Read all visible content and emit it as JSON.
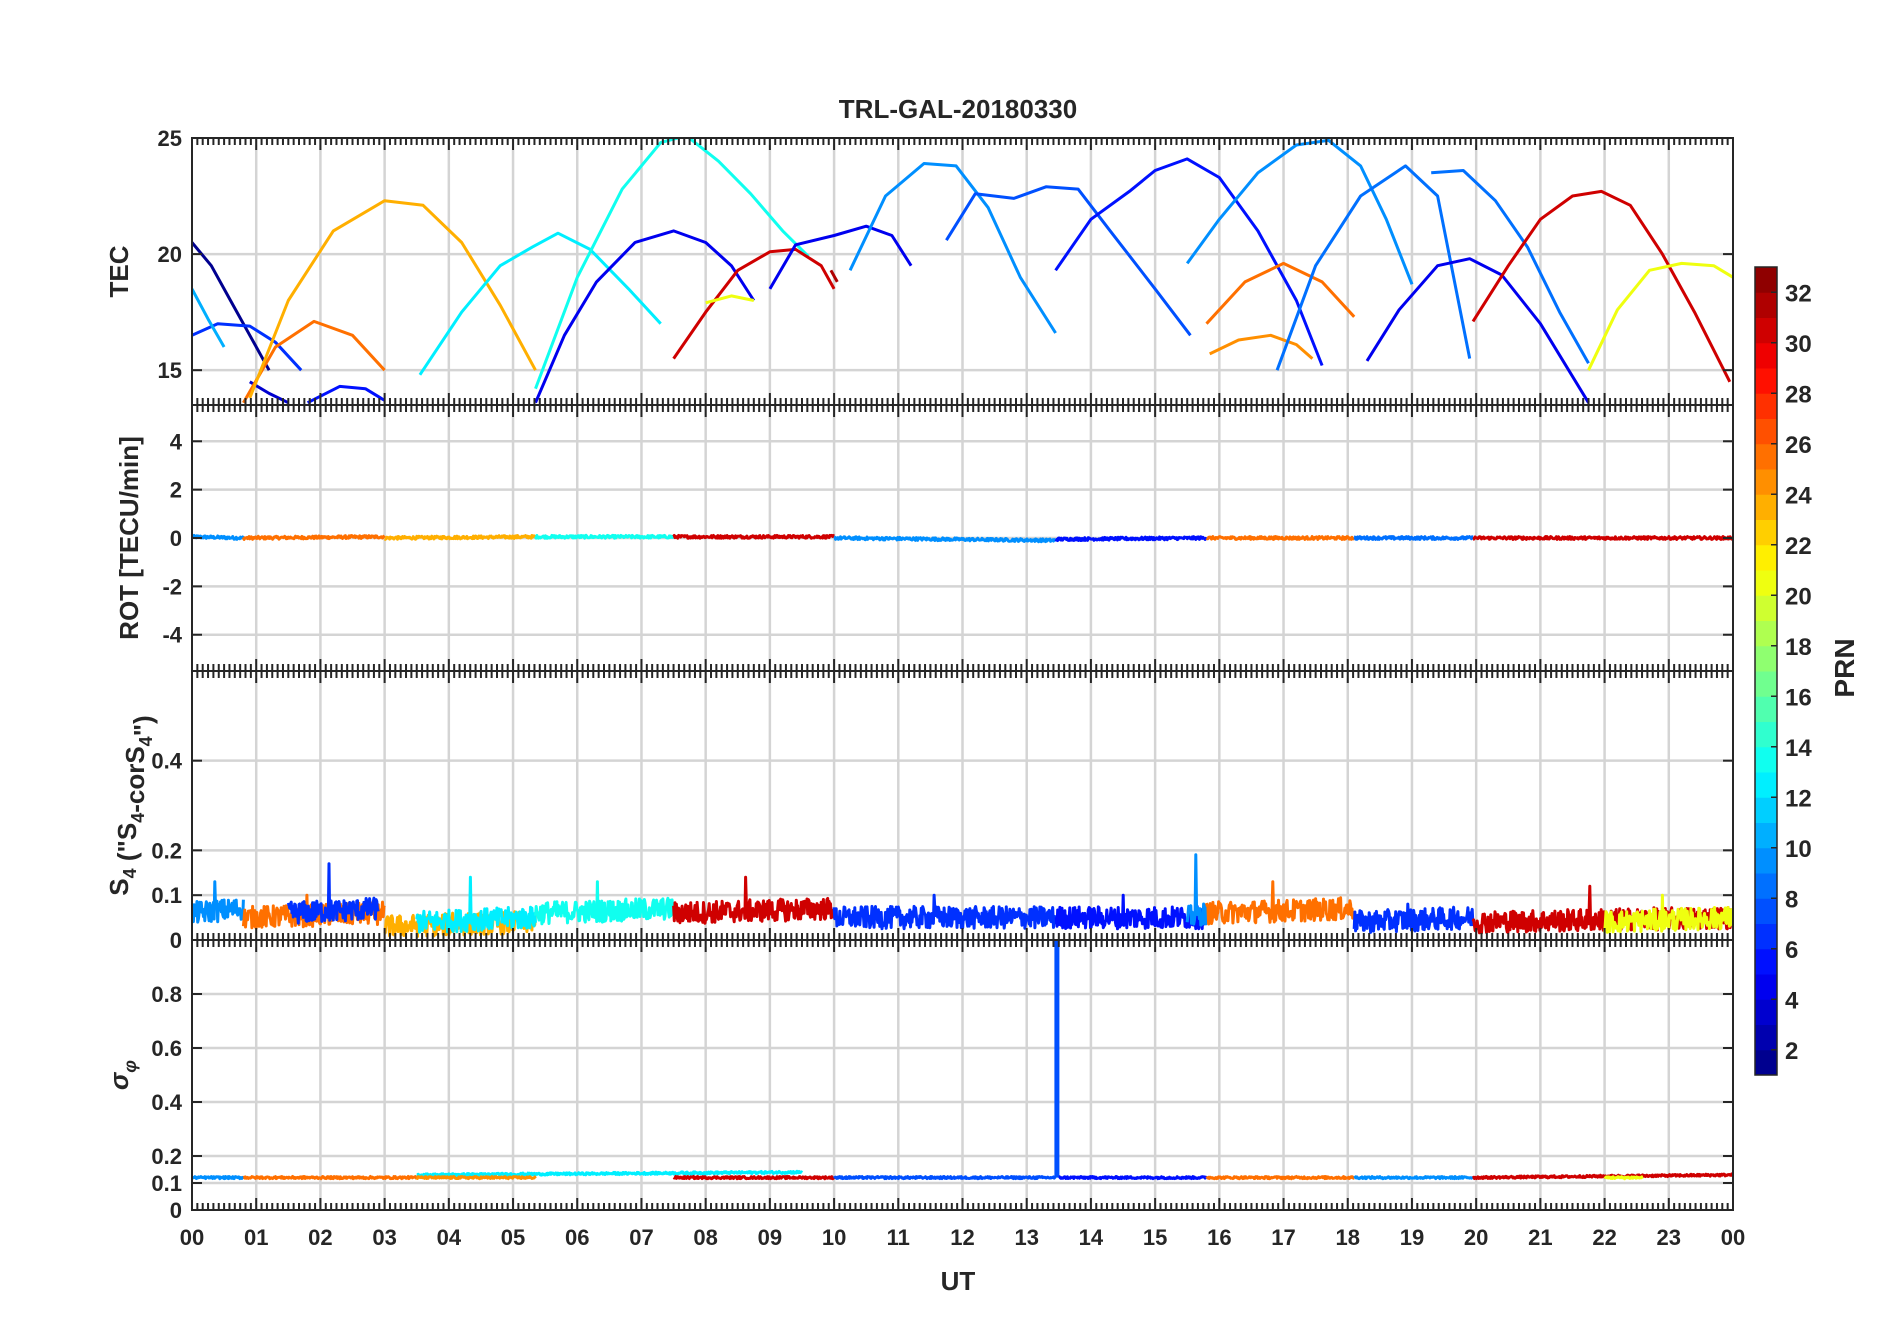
{
  "figure": {
    "title": "TRL-GAL-20180330",
    "xlabel": "UT",
    "x_ticks": [
      "00",
      "01",
      "02",
      "03",
      "04",
      "05",
      "06",
      "07",
      "08",
      "09",
      "10",
      "11",
      "12",
      "13",
      "14",
      "15",
      "16",
      "17",
      "18",
      "19",
      "20",
      "21",
      "22",
      "23",
      "00"
    ],
    "colorbar": {
      "label": "PRN",
      "colormap": "jet",
      "range": [
        1,
        32
      ],
      "ticks": [
        "2",
        "4",
        "6",
        "8",
        "10",
        "12",
        "14",
        "16",
        "18",
        "20",
        "22",
        "24",
        "26",
        "28",
        "30",
        "32"
      ]
    }
  },
  "chart_data": [
    {
      "type": "line",
      "panel": "TEC",
      "ylabel": "TEC",
      "x_unit": "UT hours",
      "xlim": [
        0,
        24
      ],
      "ylim": [
        13.5,
        25
      ],
      "y_ticks": [
        "15",
        "20",
        "25"
      ],
      "grid": true,
      "series": [
        {
          "prn": 1,
          "arc": "TEC",
          "x": [
            0,
            0.3,
            0.6,
            0.9,
            1.2
          ],
          "y": [
            20.5,
            19.5,
            18,
            16.5,
            15
          ]
        },
        {
          "prn": 6,
          "arc": "TEC",
          "x": [
            0,
            0.4,
            0.9,
            1.3,
            1.7
          ],
          "y": [
            16.5,
            17,
            16.9,
            16.2,
            15
          ]
        },
        {
          "prn": 3,
          "arc": "TEC",
          "x": [
            0.9,
            1.2,
            1.5
          ],
          "y": [
            14.5,
            14,
            13.6
          ]
        },
        {
          "prn": 10,
          "arc": "TEC",
          "x": [
            0,
            0.25,
            0.5
          ],
          "y": [
            18.5,
            17.2,
            16
          ]
        },
        {
          "prn": 25,
          "arc": "TEC",
          "x": [
            0.8,
            1.3,
            1.9,
            2.5,
            3.0
          ],
          "y": [
            13.6,
            16,
            17.1,
            16.5,
            15
          ]
        },
        {
          "prn": 23,
          "arc": "TEC",
          "x": [
            0.9,
            1.5,
            2.2,
            3.0,
            3.6,
            4.2,
            4.8,
            5.35
          ],
          "y": [
            13.8,
            18,
            21,
            22.3,
            22.1,
            20.5,
            17.8,
            15
          ]
        },
        {
          "prn": 5,
          "arc": "TEC",
          "x": [
            1.8,
            2.3,
            2.7,
            3.0
          ],
          "y": [
            13.6,
            14.3,
            14.2,
            13.7
          ]
        },
        {
          "prn": 12,
          "arc": "TEC",
          "x": [
            3.55,
            4.2,
            4.8,
            5.3,
            5.7,
            6.2,
            6.8,
            7.3
          ],
          "y": [
            14.8,
            17.5,
            19.5,
            20.3,
            20.9,
            20.2,
            18.5,
            17
          ]
        },
        {
          "prn": 13,
          "arc": "TEC",
          "x": [
            5.35,
            6.0,
            6.7,
            7.3,
            7.7,
            8.2,
            8.7,
            9.2,
            9.6
          ],
          "y": [
            14.2,
            19,
            22.8,
            24.8,
            25.1,
            24,
            22.6,
            21,
            19.9
          ]
        },
        {
          "prn": 4,
          "arc": "TEC",
          "x": [
            5.35,
            5.8,
            6.3,
            6.9,
            7.5,
            8.0,
            8.4,
            8.75
          ],
          "y": [
            13.6,
            16.5,
            18.8,
            20.5,
            21,
            20.5,
            19.5,
            18
          ]
        },
        {
          "prn": 30,
          "arc": "TEC",
          "x": [
            7.5,
            8.0,
            8.5,
            9.0,
            9.4,
            9.8,
            10.0
          ],
          "y": [
            15.5,
            17.5,
            19.3,
            20.1,
            20.2,
            19.5,
            18.5
          ]
        },
        {
          "prn": 31,
          "arc": "TEC",
          "x": [
            9.95,
            10.05
          ],
          "y": [
            19.3,
            18.8
          ]
        },
        {
          "prn": 20,
          "arc": "TEC",
          "x": [
            8.0,
            8.4,
            8.75
          ],
          "y": [
            17.9,
            18.2,
            18
          ]
        },
        {
          "prn": 4,
          "arc": "TEC",
          "x": [
            9.0,
            9.4,
            10.0,
            10.5,
            10.9,
            11.2
          ],
          "y": [
            18.5,
            20.4,
            20.8,
            21.2,
            20.8,
            19.5
          ]
        },
        {
          "prn": 9,
          "arc": "TEC",
          "x": [
            10.25,
            10.8,
            11.4,
            11.9,
            12.4,
            12.9,
            13.45
          ],
          "y": [
            19.3,
            22.5,
            23.9,
            23.8,
            22,
            19,
            16.6
          ]
        },
        {
          "prn": 7,
          "arc": "TEC",
          "x": [
            11.75,
            12.2,
            12.8,
            13.3,
            13.8,
            14.3,
            15.0,
            15.55
          ],
          "y": [
            20.6,
            22.6,
            22.4,
            22.9,
            22.8,
            21,
            18.5,
            16.5
          ]
        },
        {
          "prn": 5,
          "arc": "TEC",
          "x": [
            13.45,
            14.0,
            14.6,
            15.0,
            15.5,
            16.0,
            16.6,
            17.2,
            17.6
          ],
          "y": [
            19.3,
            21.5,
            22.7,
            23.6,
            24.1,
            23.3,
            21,
            18,
            15.2
          ]
        },
        {
          "prn": 9,
          "arc": "TEC",
          "x": [
            15.5,
            16.0,
            16.6,
            17.2,
            17.7,
            18.2,
            18.6,
            19.0
          ],
          "y": [
            19.6,
            21.5,
            23.5,
            24.7,
            24.9,
            23.8,
            21.5,
            18.7
          ]
        },
        {
          "prn": 25,
          "arc": "TEC",
          "x": [
            15.8,
            16.4,
            17.0,
            17.6,
            18.1
          ],
          "y": [
            17,
            18.8,
            19.6,
            18.8,
            17.3
          ]
        },
        {
          "prn": 24,
          "arc": "TEC",
          "x": [
            15.85,
            16.3,
            16.8,
            17.2,
            17.45
          ],
          "y": [
            15.7,
            16.3,
            16.5,
            16.1,
            15.5
          ]
        },
        {
          "prn": 8,
          "arc": "TEC",
          "x": [
            16.9,
            17.5,
            18.2,
            18.9,
            19.4,
            19.9
          ],
          "y": [
            15,
            19.5,
            22.5,
            23.8,
            22.5,
            15.5
          ]
        },
        {
          "prn": 4,
          "arc": "TEC",
          "x": [
            18.3,
            18.8,
            19.4,
            19.9,
            20.4,
            21.0,
            21.75
          ],
          "y": [
            15.4,
            17.6,
            19.5,
            19.8,
            19.1,
            17,
            13.6
          ]
        },
        {
          "prn": 8,
          "arc": "TEC",
          "x": [
            19.3,
            19.8,
            20.3,
            20.8,
            21.3,
            21.75
          ],
          "y": [
            23.5,
            23.6,
            22.3,
            20.3,
            17.5,
            15.3
          ]
        },
        {
          "prn": 30,
          "arc": "TEC",
          "x": [
            19.95,
            20.5,
            21.0,
            21.5,
            21.95,
            22.4,
            22.9,
            23.4,
            23.95
          ],
          "y": [
            17.1,
            19.5,
            21.5,
            22.5,
            22.7,
            22.1,
            20,
            17.5,
            14.5
          ]
        },
        {
          "prn": 20,
          "arc": "TEC",
          "x": [
            21.75,
            22.2,
            22.7,
            23.2,
            23.7,
            24.0
          ],
          "y": [
            15,
            17.6,
            19.3,
            19.6,
            19.5,
            19
          ]
        }
      ]
    },
    {
      "type": "line",
      "panel": "ROT",
      "ylabel": "ROT [TECU/min]",
      "xlim": [
        0,
        24
      ],
      "ylim": [
        -5.5,
        5.5
      ],
      "y_ticks": [
        "-4",
        "-2",
        "0",
        "2",
        "4"
      ],
      "grid": true,
      "series": [
        {
          "prn": 9,
          "x": [
            0,
            0.8
          ],
          "y": [
            0.05,
            0
          ]
        },
        {
          "prn": 25,
          "x": [
            0.8,
            3.0
          ],
          "y": [
            0,
            0.05
          ]
        },
        {
          "prn": 23,
          "x": [
            3.0,
            5.35
          ],
          "y": [
            0,
            0.05
          ]
        },
        {
          "prn": 13,
          "x": [
            5.35,
            7.5
          ],
          "y": [
            0.05,
            0.05
          ]
        },
        {
          "prn": 30,
          "x": [
            7.5,
            10.0
          ],
          "y": [
            0.05,
            0.05
          ]
        },
        {
          "prn": 9,
          "x": [
            10.0,
            13.45
          ],
          "y": [
            0,
            -0.1
          ]
        },
        {
          "prn": 5,
          "x": [
            13.45,
            15.8
          ],
          "y": [
            -0.05,
            0
          ]
        },
        {
          "prn": 25,
          "x": [
            15.8,
            18.1
          ],
          "y": [
            0,
            0
          ]
        },
        {
          "prn": 8,
          "x": [
            18.1,
            19.95
          ],
          "y": [
            0,
            0
          ]
        },
        {
          "prn": 30,
          "x": [
            19.95,
            24.0
          ],
          "y": [
            0,
            0
          ]
        }
      ]
    },
    {
      "type": "line",
      "panel": "S4",
      "ylabel": "S4 (\"S4-corS4\")",
      "xlim": [
        0,
        24
      ],
      "ylim": [
        0,
        0.6
      ],
      "y_ticks": [
        "0",
        "0.1",
        "0.2",
        "0.4"
      ],
      "grid": true,
      "series": [
        {
          "prn": 9,
          "x": [
            0,
            0.8
          ],
          "y": [
            0.06,
            0.07
          ],
          "peak": 0.13
        },
        {
          "prn": 25,
          "x": [
            0.8,
            3.0
          ],
          "y": [
            0.05,
            0.06
          ],
          "peak": 0.1
        },
        {
          "prn": 6,
          "x": [
            1.5,
            2.9
          ],
          "y": [
            0.06,
            0.07
          ],
          "peak": 0.17
        },
        {
          "prn": 23,
          "x": [
            3.0,
            5.35
          ],
          "y": [
            0.03,
            0.04
          ],
          "peak": 0.06
        },
        {
          "prn": 12,
          "x": [
            3.5,
            5.35
          ],
          "y": [
            0.04,
            0.05
          ],
          "peak": 0.14
        },
        {
          "prn": 13,
          "x": [
            5.35,
            7.5
          ],
          "y": [
            0.06,
            0.07
          ],
          "peak": 0.13
        },
        {
          "prn": 30,
          "x": [
            7.5,
            10.0
          ],
          "y": [
            0.06,
            0.07
          ],
          "peak": 0.14
        },
        {
          "prn": 6,
          "x": [
            10.0,
            13.45
          ],
          "y": [
            0.05,
            0.05
          ],
          "peak": 0.1
        },
        {
          "prn": 5,
          "x": [
            13.45,
            15.8
          ],
          "y": [
            0.05,
            0.05
          ],
          "peak": 0.1
        },
        {
          "prn": 9,
          "x": [
            15.5,
            15.8
          ],
          "y": [
            0.05,
            0.06
          ],
          "peak": 0.19
        },
        {
          "prn": 25,
          "x": [
            15.8,
            18.1
          ],
          "y": [
            0.06,
            0.07
          ],
          "peak": 0.13
        },
        {
          "prn": 6,
          "x": [
            18.1,
            19.95
          ],
          "y": [
            0.04,
            0.05
          ],
          "peak": 0.08
        },
        {
          "prn": 30,
          "x": [
            19.95,
            24.0
          ],
          "y": [
            0.04,
            0.05
          ],
          "peak": 0.12
        },
        {
          "prn": 20,
          "x": [
            22.0,
            24.0
          ],
          "y": [
            0.04,
            0.05
          ],
          "peak": 0.1
        }
      ]
    },
    {
      "type": "line",
      "panel": "sigma_phi",
      "ylabel": "σφ",
      "xlim": [
        0,
        24
      ],
      "ylim": [
        0,
        1
      ],
      "y_ticks": [
        "0",
        "0.1",
        "0.2",
        "0.4",
        "0.6",
        "0.8"
      ],
      "grid": true,
      "series": [
        {
          "prn": 9,
          "x": [
            0,
            0.8
          ],
          "y": [
            0.12,
            0.12
          ]
        },
        {
          "prn": 25,
          "x": [
            0.8,
            3.5
          ],
          "y": [
            0.12,
            0.12
          ]
        },
        {
          "prn": 12,
          "x": [
            3.5,
            9.5
          ],
          "y": [
            0.13,
            0.14
          ]
        },
        {
          "prn": 24,
          "x": [
            3.5,
            5.35
          ],
          "y": [
            0.12,
            0.12
          ]
        },
        {
          "prn": 30,
          "x": [
            7.5,
            10.0
          ],
          "y": [
            0.12,
            0.12
          ]
        },
        {
          "prn": 7,
          "x": [
            10.0,
            13.45
          ],
          "y": [
            0.12,
            0.12
          ]
        },
        {
          "prn": 7,
          "x": [
            13.47,
            13.47
          ],
          "y": [
            0.12,
            1.0
          ]
        },
        {
          "prn": 5,
          "x": [
            13.5,
            15.8
          ],
          "y": [
            0.12,
            0.12
          ]
        },
        {
          "prn": 25,
          "x": [
            15.8,
            18.1
          ],
          "y": [
            0.12,
            0.12
          ]
        },
        {
          "prn": 9,
          "x": [
            18.1,
            19.95
          ],
          "y": [
            0.12,
            0.12
          ]
        },
        {
          "prn": 30,
          "x": [
            19.95,
            24.0
          ],
          "y": [
            0.12,
            0.13
          ]
        },
        {
          "prn": 20,
          "x": [
            22.0,
            22.6
          ],
          "y": [
            0.12,
            0.12
          ]
        }
      ]
    }
  ]
}
